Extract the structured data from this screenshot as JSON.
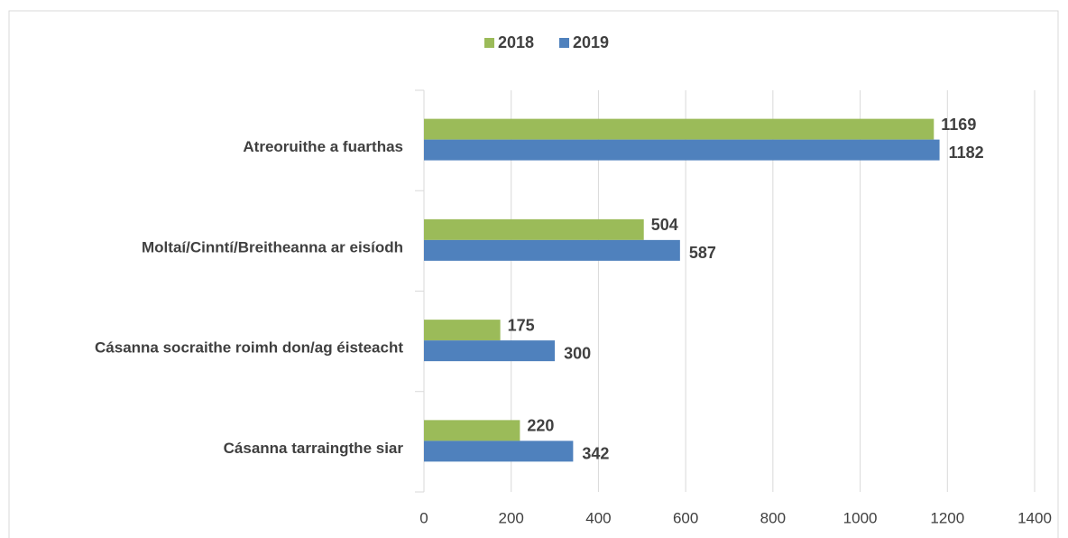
{
  "chart_data": {
    "type": "hbar",
    "categories": [
      "Atreoruithe a fuarthas",
      "Moltaí/Cinntí/Breitheanna ar eisíodh",
      "Cásanna socraithe roimh don/ag éisteacht",
      "Cásanna tarraingthe siar"
    ],
    "series": [
      {
        "name": "2018",
        "color": "#9bbb59",
        "values": [
          1169,
          504,
          175,
          220
        ]
      },
      {
        "name": "2019",
        "color": "#4f81bd",
        "values": [
          1182,
          587,
          300,
          342
        ]
      }
    ],
    "xlim": [
      0,
      1400
    ],
    "xticks": [
      0,
      200,
      400,
      600,
      800,
      1000,
      1200,
      1400
    ],
    "grid": true,
    "legend": "top"
  }
}
